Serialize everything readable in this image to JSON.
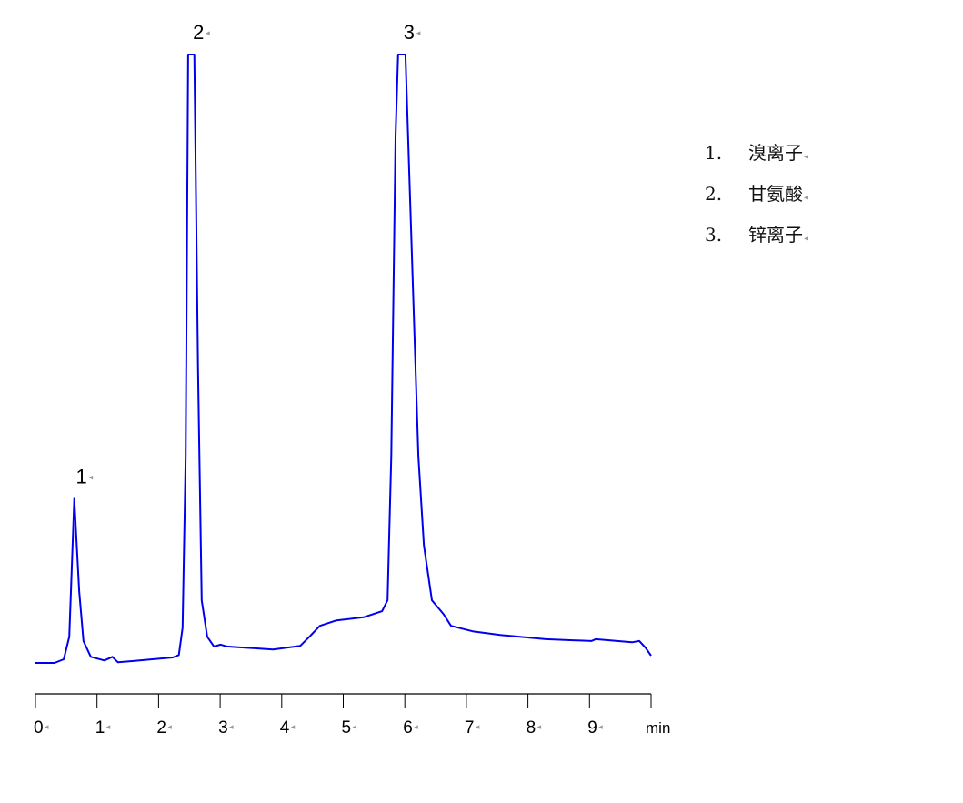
{
  "chart_data": {
    "type": "line",
    "title": "",
    "xlabel": "min",
    "ylabel": "",
    "xlim": [
      0,
      10
    ],
    "ylim": [
      0,
      100
    ],
    "x_ticks": [
      "0",
      "1",
      "2",
      "3",
      "4",
      "5",
      "6",
      "7",
      "8",
      "9"
    ],
    "grid": false,
    "line_color": "#0000ee",
    "series": [
      {
        "points": [
          [
            0,
            0
          ],
          [
            0.31,
            0
          ],
          [
            0.46,
            0.6
          ],
          [
            0.55,
            4.3
          ],
          [
            0.63,
            27
          ],
          [
            0.71,
            11.8
          ],
          [
            0.78,
            3.6
          ],
          [
            0.9,
            1
          ],
          [
            1.12,
            0.4
          ],
          [
            1.25,
            1
          ],
          [
            1.34,
            0.1
          ],
          [
            1.57,
            0.3
          ],
          [
            2.23,
            0.9
          ],
          [
            2.33,
            1.3
          ],
          [
            2.39,
            5.8
          ],
          [
            2.44,
            34
          ],
          [
            2.48,
            100
          ],
          [
            2.58,
            100
          ],
          [
            2.64,
            49
          ],
          [
            2.7,
            10.3
          ],
          [
            2.79,
            4.3
          ],
          [
            2.9,
            2.7
          ],
          [
            3.01,
            3
          ],
          [
            3.11,
            2.7
          ],
          [
            3.56,
            2.4
          ],
          [
            3.86,
            2.2
          ],
          [
            4.3,
            2.8
          ],
          [
            4.45,
            4.3
          ],
          [
            4.62,
            6.1
          ],
          [
            4.89,
            7
          ],
          [
            5.33,
            7.5
          ],
          [
            5.63,
            8.5
          ],
          [
            5.72,
            10.3
          ],
          [
            5.78,
            34
          ],
          [
            5.85,
            86.5
          ],
          [
            5.89,
            100
          ],
          [
            6.01,
            100
          ],
          [
            6.1,
            71.6
          ],
          [
            6.22,
            34
          ],
          [
            6.31,
            19.3
          ],
          [
            6.44,
            10.3
          ],
          [
            6.63,
            8
          ],
          [
            6.75,
            6.1
          ],
          [
            7.1,
            5.2
          ],
          [
            7.55,
            4.6
          ],
          [
            8.29,
            3.9
          ],
          [
            9.03,
            3.6
          ],
          [
            9.1,
            3.9
          ],
          [
            9.69,
            3.4
          ],
          [
            9.81,
            3.6
          ],
          [
            9.91,
            2.5
          ],
          [
            10,
            1.2
          ]
        ]
      }
    ],
    "annotations": [
      {
        "text": "1",
        "x": 0.63,
        "y": 27
      },
      {
        "text": "2",
        "x": 2.53,
        "y": 100
      },
      {
        "text": "3",
        "x": 5.95,
        "y": 100
      }
    ],
    "legend": {
      "placement": "top-right",
      "entries": [
        {
          "num": "1.",
          "label": "溴离子"
        },
        {
          "num": "2.",
          "label": "甘氨酸"
        },
        {
          "num": "3.",
          "label": "锌离子"
        }
      ]
    }
  }
}
